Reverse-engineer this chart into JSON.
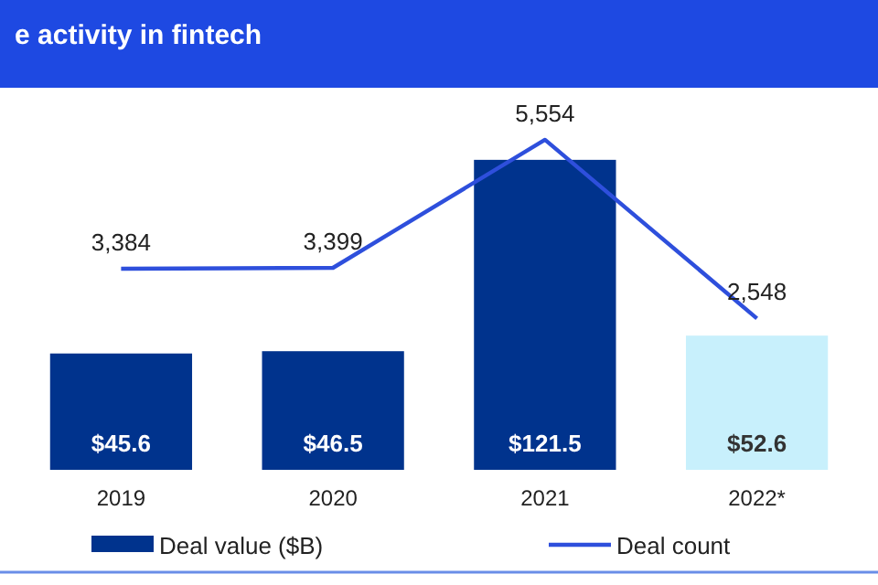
{
  "chart_data": {
    "type": "bar",
    "title": "e activity in fintech",
    "categories": [
      "2019",
      "2020",
      "2021",
      "2022*"
    ],
    "series": [
      {
        "name": "Deal value ($B)",
        "color": "#00338d",
        "colors": [
          "#00338d",
          "#00338d",
          "#00338d",
          "#c8f0fc"
        ],
        "values": [
          45.6,
          46.5,
          121.5,
          52.6
        ],
        "value_labels": [
          "$45.6",
          "$46.5",
          "$121.5",
          "$52.6"
        ]
      },
      {
        "name": "Deal count",
        "type": "line",
        "axis": "y2",
        "color": "#2e4fdc",
        "values": [
          3384,
          3399,
          5554,
          2548
        ],
        "value_labels": [
          "3,384",
          "3,399",
          "5,554",
          "2,548"
        ]
      }
    ],
    "tick_labels": "x",
    "legend": "bottom",
    "marker": "none",
    "line_style": "solid"
  }
}
